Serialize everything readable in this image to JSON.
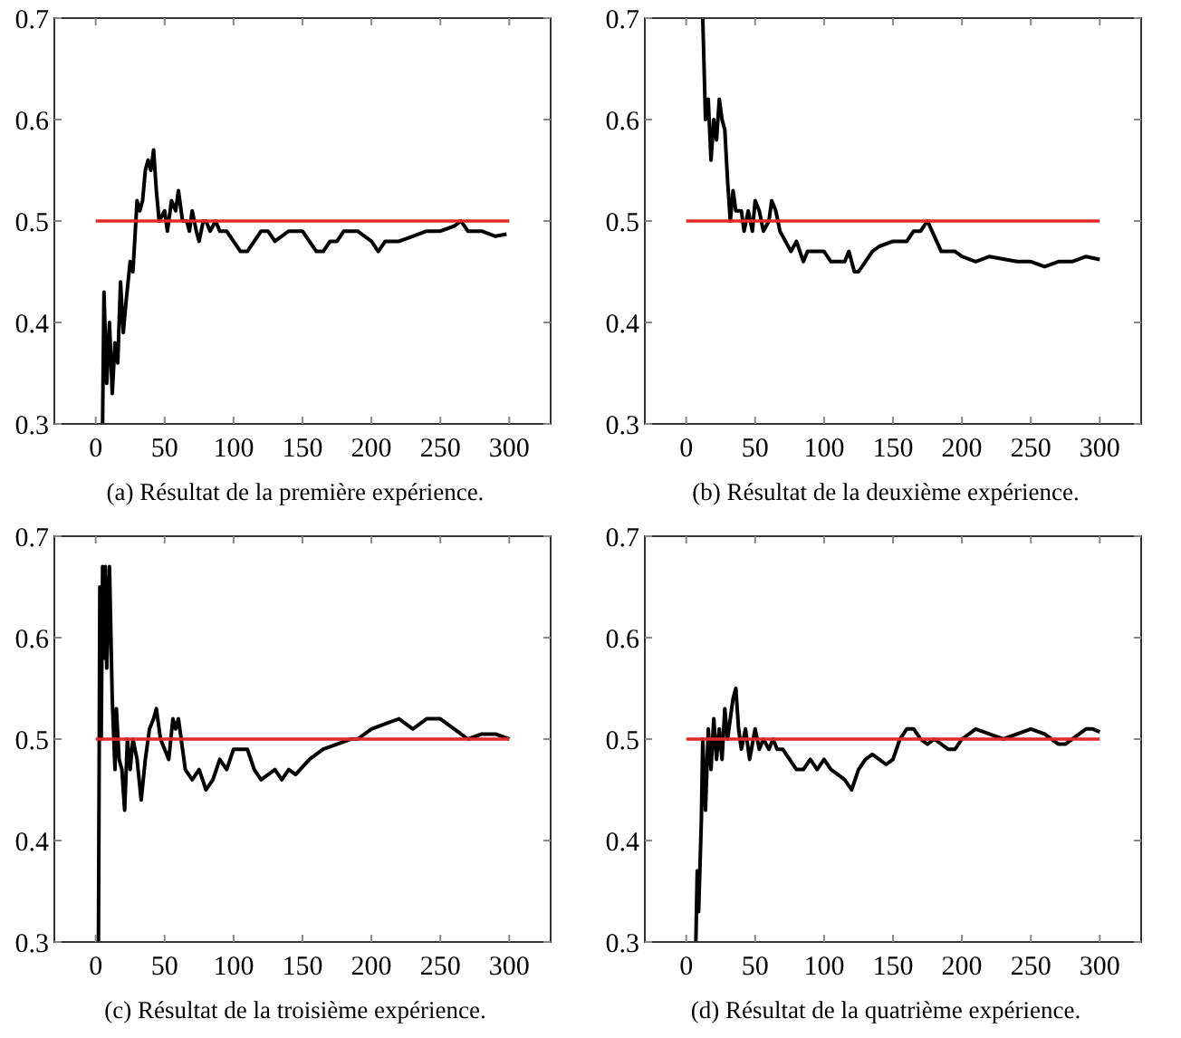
{
  "chart_data": [
    {
      "type": "line",
      "annotations": [
        "(a) Résultat de la première expérience."
      ],
      "xlim": [
        -30,
        330
      ],
      "ylim": [
        0.3,
        0.7
      ],
      "xticks": [
        0,
        50,
        100,
        150,
        200,
        250,
        300
      ],
      "yticks": [
        0.3,
        0.4,
        0.5,
        0.6,
        0.7
      ],
      "series": [
        {
          "color": "#000000",
          "x": [
            5,
            6,
            8,
            10,
            12,
            14,
            16,
            18,
            20,
            22,
            25,
            27,
            30,
            32,
            34,
            36,
            38,
            40,
            42,
            44,
            46,
            50,
            52,
            55,
            58,
            60,
            63,
            66,
            68,
            70,
            73,
            75,
            78,
            80,
            83,
            87,
            90,
            95,
            100,
            105,
            110,
            115,
            120,
            125,
            130,
            140,
            150,
            155,
            160,
            165,
            170,
            175,
            180,
            190,
            200,
            205,
            210,
            220,
            230,
            240,
            250,
            260,
            265,
            270,
            275,
            280,
            290,
            298
          ],
          "values": [
            0.3,
            0.43,
            0.34,
            0.4,
            0.33,
            0.38,
            0.36,
            0.44,
            0.39,
            0.42,
            0.46,
            0.45,
            0.52,
            0.51,
            0.52,
            0.55,
            0.56,
            0.55,
            0.57,
            0.53,
            0.5,
            0.51,
            0.49,
            0.52,
            0.51,
            0.53,
            0.5,
            0.5,
            0.49,
            0.51,
            0.49,
            0.48,
            0.5,
            0.5,
            0.49,
            0.5,
            0.49,
            0.49,
            0.48,
            0.47,
            0.47,
            0.48,
            0.49,
            0.49,
            0.48,
            0.49,
            0.49,
            0.48,
            0.47,
            0.47,
            0.48,
            0.48,
            0.49,
            0.49,
            0.48,
            0.47,
            0.48,
            0.48,
            0.485,
            0.49,
            0.49,
            0.495,
            0.5,
            0.49,
            0.49,
            0.49,
            0.485,
            0.487
          ]
        },
        {
          "color": "#e02a2a",
          "x": [
            0,
            300
          ],
          "values": [
            0.5,
            0.5
          ]
        }
      ]
    },
    {
      "type": "line",
      "annotations": [
        "(b) Résultat de la deuxième expérience."
      ],
      "xlim": [
        -30,
        330
      ],
      "ylim": [
        0.3,
        0.7
      ],
      "xticks": [
        0,
        50,
        100,
        150,
        200,
        250,
        300
      ],
      "yticks": [
        0.3,
        0.4,
        0.5,
        0.6,
        0.7
      ],
      "series": [
        {
          "color": "#000000",
          "x": [
            12,
            14,
            16,
            18,
            20,
            22,
            24,
            26,
            28,
            30,
            32,
            34,
            36,
            40,
            42,
            45,
            48,
            50,
            53,
            56,
            60,
            62,
            65,
            68,
            72,
            76,
            80,
            85,
            88,
            92,
            96,
            100,
            105,
            110,
            115,
            118,
            122,
            125,
            130,
            135,
            140,
            150,
            160,
            165,
            170,
            175,
            180,
            185,
            195,
            200,
            210,
            220,
            240,
            250,
            260,
            270,
            280,
            290,
            300
          ],
          "values": [
            0.7,
            0.6,
            0.62,
            0.56,
            0.6,
            0.58,
            0.62,
            0.6,
            0.59,
            0.54,
            0.5,
            0.53,
            0.51,
            0.51,
            0.49,
            0.51,
            0.49,
            0.52,
            0.51,
            0.49,
            0.5,
            0.52,
            0.51,
            0.49,
            0.48,
            0.47,
            0.48,
            0.46,
            0.47,
            0.47,
            0.47,
            0.47,
            0.46,
            0.46,
            0.46,
            0.47,
            0.45,
            0.45,
            0.46,
            0.47,
            0.475,
            0.48,
            0.48,
            0.49,
            0.49,
            0.5,
            0.485,
            0.47,
            0.47,
            0.465,
            0.46,
            0.465,
            0.46,
            0.46,
            0.455,
            0.46,
            0.46,
            0.465,
            0.462
          ]
        },
        {
          "color": "#e02a2a",
          "x": [
            0,
            300
          ],
          "values": [
            0.5,
            0.5
          ]
        }
      ]
    },
    {
      "type": "line",
      "annotations": [
        "(c) Résultat de la troisième expérience."
      ],
      "xlim": [
        -30,
        330
      ],
      "ylim": [
        0.3,
        0.7
      ],
      "xticks": [
        0,
        50,
        100,
        150,
        200,
        250,
        300
      ],
      "yticks": [
        0.3,
        0.4,
        0.5,
        0.6,
        0.7
      ],
      "series": [
        {
          "color": "#000000",
          "x": [
            2,
            3,
            4,
            5,
            6,
            7,
            8,
            10,
            12,
            14,
            15,
            17,
            19,
            21,
            23,
            25,
            27,
            30,
            33,
            36,
            39,
            42,
            44,
            47,
            50,
            53,
            56,
            58,
            60,
            63,
            65,
            70,
            75,
            80,
            85,
            90,
            95,
            100,
            110,
            115,
            120,
            130,
            135,
            140,
            145,
            155,
            165,
            175,
            185,
            190,
            200,
            210,
            220,
            230,
            240,
            250,
            260,
            270,
            280,
            290,
            300
          ],
          "values": [
            0.3,
            0.65,
            0.5,
            0.67,
            0.58,
            0.67,
            0.57,
            0.67,
            0.54,
            0.47,
            0.53,
            0.48,
            0.47,
            0.43,
            0.5,
            0.47,
            0.5,
            0.48,
            0.44,
            0.48,
            0.51,
            0.52,
            0.53,
            0.5,
            0.49,
            0.48,
            0.52,
            0.51,
            0.52,
            0.49,
            0.47,
            0.46,
            0.47,
            0.45,
            0.46,
            0.48,
            0.47,
            0.49,
            0.49,
            0.47,
            0.46,
            0.47,
            0.46,
            0.47,
            0.465,
            0.48,
            0.49,
            0.495,
            0.5,
            0.5,
            0.51,
            0.515,
            0.52,
            0.51,
            0.52,
            0.52,
            0.51,
            0.5,
            0.505,
            0.505,
            0.5
          ]
        },
        {
          "color": "#e02a2a",
          "x": [
            0,
            300
          ],
          "values": [
            0.5,
            0.5
          ]
        }
      ]
    },
    {
      "type": "line",
      "annotations": [
        "(d) Résultat de la quatrième expérience."
      ],
      "xlim": [
        -30,
        330
      ],
      "ylim": [
        0.3,
        0.7
      ],
      "xticks": [
        0,
        50,
        100,
        150,
        200,
        250,
        300
      ],
      "yticks": [
        0.3,
        0.4,
        0.5,
        0.6,
        0.7
      ],
      "series": [
        {
          "color": "#000000",
          "x": [
            7,
            8,
            9,
            11,
            12,
            14,
            16,
            18,
            20,
            22,
            24,
            26,
            28,
            30,
            32,
            34,
            36,
            38,
            40,
            43,
            46,
            50,
            53,
            56,
            60,
            63,
            66,
            70,
            75,
            80,
            85,
            90,
            95,
            100,
            105,
            110,
            115,
            120,
            125,
            130,
            135,
            140,
            145,
            150,
            155,
            160,
            165,
            170,
            175,
            180,
            190,
            195,
            200,
            210,
            220,
            230,
            240,
            250,
            260,
            270,
            275,
            285,
            290,
            295,
            300
          ],
          "values": [
            0.3,
            0.37,
            0.33,
            0.42,
            0.5,
            0.43,
            0.51,
            0.47,
            0.52,
            0.48,
            0.51,
            0.48,
            0.53,
            0.5,
            0.52,
            0.54,
            0.55,
            0.51,
            0.49,
            0.51,
            0.48,
            0.51,
            0.49,
            0.5,
            0.49,
            0.5,
            0.49,
            0.49,
            0.48,
            0.47,
            0.47,
            0.48,
            0.47,
            0.48,
            0.47,
            0.465,
            0.46,
            0.45,
            0.47,
            0.48,
            0.485,
            0.48,
            0.475,
            0.48,
            0.5,
            0.51,
            0.51,
            0.5,
            0.495,
            0.5,
            0.49,
            0.49,
            0.5,
            0.51,
            0.505,
            0.5,
            0.505,
            0.51,
            0.505,
            0.495,
            0.495,
            0.505,
            0.51,
            0.51,
            0.507
          ]
        },
        {
          "color": "#e02a2a",
          "x": [
            0,
            300
          ],
          "values": [
            0.5,
            0.5
          ]
        }
      ]
    }
  ]
}
